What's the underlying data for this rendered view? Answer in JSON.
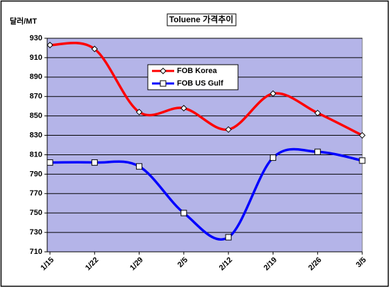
{
  "chart_data": {
    "type": "line",
    "title": "Toluene 가격추이",
    "y_label": "달러/MT",
    "categories": [
      "1/15",
      "1/22",
      "1/29",
      "2/5",
      "2/12",
      "2/19",
      "2/26",
      "3/5"
    ],
    "series": [
      {
        "name": "FOB Korea",
        "color": "#ff0000",
        "marker": "diamond",
        "values": [
          923,
          919,
          854,
          858,
          836,
          873,
          853,
          830
        ]
      },
      {
        "name": "FOB US Gulf",
        "color": "#0000ff",
        "marker": "square",
        "values": [
          802,
          802,
          798,
          750,
          725,
          807,
          813,
          804
        ]
      }
    ],
    "ylim": [
      710,
      930
    ],
    "yticks": [
      710,
      730,
      750,
      770,
      790,
      810,
      830,
      850,
      870,
      890,
      910,
      930
    ],
    "grid": true,
    "smooth": true,
    "background": "#b4b4e8"
  }
}
